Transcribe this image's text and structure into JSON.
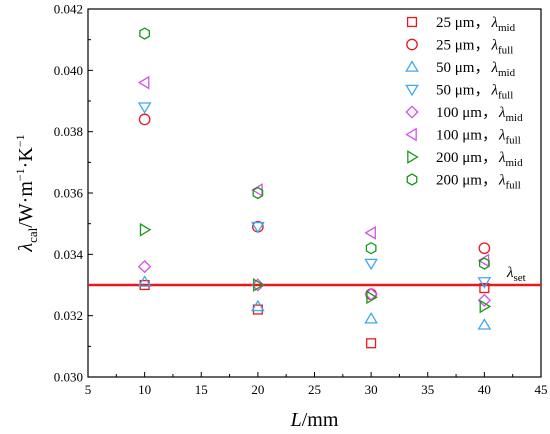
{
  "chart_data": {
    "type": "scatter",
    "xlabel": {
      "main": "L",
      "unit": "/mm"
    },
    "ylabel": {
      "main": "λ",
      "sub": "cal",
      "unit_parts": [
        "/W·m",
        "−1",
        "·K",
        "−1"
      ]
    },
    "xlim": [
      5,
      45
    ],
    "ylim": [
      0.03,
      0.042
    ],
    "x_ticks": [
      "5",
      "10",
      "15",
      "20",
      "25",
      "30",
      "35",
      "40",
      "45"
    ],
    "y_ticks": [
      "0.030",
      "0.032",
      "0.034",
      "0.036",
      "0.038",
      "0.040",
      "0.042"
    ],
    "grid": false,
    "legend_position": "top-right",
    "reference_line": {
      "y": 0.033,
      "label_main": "λ",
      "label_sub": "set",
      "color": "#e8191c"
    },
    "series": [
      {
        "size": "25 μm，",
        "sym": "λ",
        "sub": "mid",
        "marker": "square",
        "color": "#e8191c",
        "x": [
          10,
          20,
          30,
          40
        ],
        "y": [
          0.033,
          0.0322,
          0.0311,
          0.0329
        ]
      },
      {
        "size": "25 μm，",
        "sym": "λ",
        "sub": "full",
        "marker": "circle",
        "color": "#e8191c",
        "x": [
          10,
          20,
          30,
          40
        ],
        "y": [
          0.0384,
          0.0349,
          0.0327,
          0.0342
        ]
      },
      {
        "size": "50 μm，",
        "sym": "λ",
        "sub": "mid",
        "marker": "triangle-up",
        "color": "#3fa8f5",
        "x": [
          10,
          20,
          30,
          40
        ],
        "y": [
          0.0331,
          0.0323,
          0.0319,
          0.0317
        ]
      },
      {
        "size": "50 μm，",
        "sym": "λ",
        "sub": "full",
        "marker": "triangle-down",
        "color": "#3fa8f5",
        "x": [
          10,
          20,
          30,
          40
        ],
        "y": [
          0.0388,
          0.0349,
          0.0337,
          0.0331
        ]
      },
      {
        "size": "100 μm，",
        "sym": "λ",
        "sub": "mid",
        "marker": "diamond",
        "color": "#d152e8",
        "x": [
          10,
          20,
          30,
          40
        ],
        "y": [
          0.0336,
          0.033,
          0.0327,
          0.0325
        ]
      },
      {
        "size": "100 μm，",
        "sym": "λ",
        "sub": "full",
        "marker": "triangle-left",
        "color": "#d152e8",
        "x": [
          10,
          20,
          30,
          40
        ],
        "y": [
          0.0396,
          0.0361,
          0.0347,
          0.0338
        ]
      },
      {
        "size": "200 μm，",
        "sym": "λ",
        "sub": "mid",
        "marker": "triangle-right",
        "color": "#169a16",
        "x": [
          10,
          20,
          30,
          40
        ],
        "y": [
          0.0348,
          0.033,
          0.0326,
          0.0323
        ]
      },
      {
        "size": "200 μm，",
        "sym": "λ",
        "sub": "full",
        "marker": "hexagon",
        "color": "#169a16",
        "x": [
          10,
          20,
          30,
          40
        ],
        "y": [
          0.0412,
          0.036,
          0.0342,
          0.0337
        ]
      }
    ]
  }
}
